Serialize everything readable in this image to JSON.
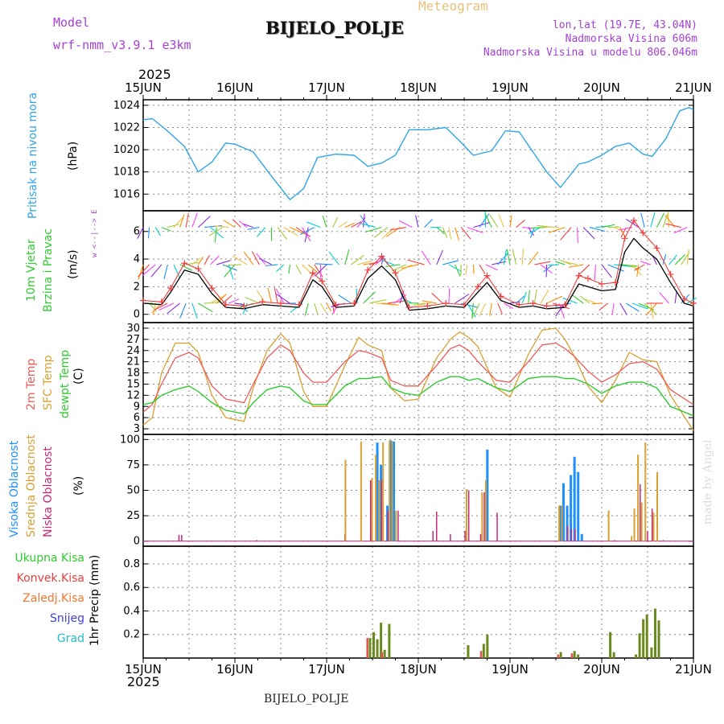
{
  "header": {
    "model_label": "Model",
    "model_name": "wrf-nmm_v3.9.1  e3km",
    "meteogram": "Meteogram",
    "station": "BIJELO_POLJE",
    "lonlat": "lon,lat (19.7E, 43.04N)",
    "elevation": "Nadmorska Visina 606m",
    "model_elevation": "Nadmorska Visina u modelu 806.046m",
    "footer_station": "BIJELO_POLJE",
    "watermark": "made by Angel"
  },
  "colors": {
    "pressure": "#2ea6e8",
    "wind_speed": "#000000",
    "gust": "#f03c3c",
    "t2m": "#f05a5a",
    "sfc": "#d9a030",
    "dew": "#2ecc2e",
    "cloud_high": "#1e90ff",
    "cloud_mid": "#d9a030",
    "cloud_low": "#c8287a",
    "precip_total": "#6a8a1e",
    "precip_conv": "#e05050",
    "grid": "#888888"
  },
  "labels": {
    "year_top": "2025",
    "year_bottom": "2025",
    "x_ticks": [
      "15JUN",
      "16JUN",
      "17JUN",
      "18JUN",
      "19JUN",
      "20JUN",
      "21JUN"
    ],
    "pressure_label": "Pritisak na nivou mora",
    "pressure_unit": "(hPa)",
    "wind_label_1": "10m Vjetar",
    "wind_label_2": "Brzina i Pravac",
    "wind_unit": "(m/s)",
    "compass": "w <--|--> E",
    "temp_label_1": "2m Temp",
    "temp_label_2": "SFC Temp",
    "temp_label_3": "dewpt Temp",
    "temp_unit": "(C)",
    "cloud_label_1": "Visoka Oblacnost",
    "cloud_label_2": "Srednja Oblacnost",
    "cloud_label_3": "Niska Oblacnost",
    "cloud_unit": "(%)",
    "precip_unit": "1hr Precip (mm)",
    "legend_total": "Ukupna Kisa",
    "legend_conv": "Konvek.Kisa",
    "legend_frz": "Zaledj.Kisa",
    "legend_snow": "Snijeg",
    "legend_hail": "Grad"
  },
  "chart_data": [
    {
      "type": "line",
      "name": "pressure",
      "ylabel": "Pritisak na nivou mora (hPa)",
      "ylim": [
        1014.5,
        1024.5
      ],
      "yticks": [
        1016,
        1018,
        1020,
        1022,
        1024
      ],
      "x_days": [
        0,
        0.1,
        0.25,
        0.45,
        0.6,
        0.75,
        0.9,
        1.0,
        1.2,
        1.4,
        1.6,
        1.75,
        1.9,
        2.1,
        2.3,
        2.45,
        2.6,
        2.75,
        2.9,
        3.1,
        3.3,
        3.45,
        3.6,
        3.8,
        3.95,
        4.1,
        4.25,
        4.4,
        4.55,
        4.75,
        4.85,
        5.0,
        5.15,
        5.3,
        5.45,
        5.55,
        5.7,
        5.85,
        5.95,
        6.0
      ],
      "values": [
        1022.7,
        1022.8,
        1021.8,
        1020.3,
        1018.0,
        1018.9,
        1020.6,
        1020.5,
        1019.8,
        1017.6,
        1015.5,
        1016.5,
        1019.3,
        1019.6,
        1019.5,
        1018.5,
        1018.8,
        1019.5,
        1021.8,
        1021.8,
        1022.0,
        1020.8,
        1019.5,
        1019.9,
        1021.7,
        1021.6,
        1019.8,
        1018.0,
        1016.6,
        1018.7,
        1018.9,
        1019.5,
        1020.3,
        1020.6,
        1019.6,
        1019.4,
        1021.0,
        1023.5,
        1023.8,
        1023.6
      ]
    },
    {
      "type": "line",
      "name": "wind",
      "ylabel": "10m Vjetar Brzina i Pravac (m/s)",
      "ylim": [
        -0.6,
        7.5
      ],
      "yticks": [
        0,
        2,
        4,
        6
      ],
      "x_days": [
        0,
        0.2,
        0.3,
        0.45,
        0.6,
        0.75,
        0.9,
        1.1,
        1.3,
        1.5,
        1.7,
        1.85,
        1.95,
        2.1,
        2.3,
        2.45,
        2.6,
        2.75,
        2.9,
        3.1,
        3.3,
        3.5,
        3.65,
        3.75,
        3.9,
        4.1,
        4.25,
        4.4,
        4.6,
        4.75,
        4.85,
        5.0,
        5.15,
        5.25,
        5.35,
        5.45,
        5.6,
        5.75,
        5.9,
        6.0
      ],
      "series": [
        {
          "name": "speed",
          "values": [
            0.8,
            0.7,
            1.6,
            3.2,
            2.9,
            1.5,
            0.5,
            0.4,
            0.7,
            0.6,
            0.5,
            2.5,
            2.0,
            0.5,
            0.6,
            2.6,
            3.5,
            2.5,
            0.3,
            0.4,
            0.6,
            0.5,
            1.6,
            2.3,
            1.0,
            0.5,
            0.6,
            0.4,
            0.5,
            2.2,
            2.0,
            1.7,
            1.8,
            4.5,
            5.5,
            4.8,
            4.0,
            2.3,
            0.8,
            0.6
          ]
        },
        {
          "name": "gust",
          "values": [
            1.0,
            0.9,
            1.9,
            3.7,
            3.3,
            1.9,
            0.7,
            0.6,
            0.9,
            0.8,
            0.7,
            3.0,
            2.4,
            0.7,
            0.8,
            3.2,
            4.2,
            3.0,
            0.5,
            0.6,
            0.8,
            0.7,
            2.0,
            2.8,
            1.3,
            0.7,
            0.8,
            0.6,
            0.7,
            2.8,
            2.6,
            2.2,
            2.3,
            5.5,
            6.8,
            5.9,
            4.8,
            2.9,
            1.1,
            0.8
          ]
        }
      ],
      "arrow_rows_mps": [
        0.8,
        3.6,
        6.3
      ]
    },
    {
      "type": "line",
      "name": "temperature",
      "ylabel": "Temp (C)",
      "ylim": [
        1.5,
        31.5
      ],
      "yticks": [
        3,
        6,
        9,
        12,
        15,
        18,
        21,
        24,
        27,
        30
      ],
      "x_days": [
        0,
        0.1,
        0.2,
        0.35,
        0.5,
        0.6,
        0.75,
        0.9,
        1.1,
        1.2,
        1.35,
        1.5,
        1.6,
        1.75,
        1.85,
        2.0,
        2.2,
        2.35,
        2.45,
        2.6,
        2.7,
        2.85,
        3.0,
        3.2,
        3.35,
        3.45,
        3.55,
        3.65,
        3.85,
        4.0,
        4.2,
        4.35,
        4.5,
        4.6,
        4.7,
        4.85,
        5.0,
        5.15,
        5.3,
        5.45,
        5.6,
        5.75,
        6.0
      ],
      "series": [
        {
          "name": "2m Temp",
          "values": [
            7.5,
            9.5,
            15.0,
            22.0,
            23.5,
            22.0,
            14.5,
            11.0,
            10.0,
            15.0,
            22.0,
            25.5,
            24.0,
            18.0,
            15.5,
            15.5,
            21.0,
            24.0,
            23.5,
            22.0,
            16.0,
            14.5,
            14.5,
            20.0,
            24.5,
            25.5,
            24.0,
            21.0,
            16.0,
            15.5,
            21.0,
            25.5,
            26.0,
            24.5,
            22.5,
            18.5,
            15.5,
            17.5,
            20.5,
            21.0,
            19.0,
            13.5,
            9.5
          ]
        },
        {
          "name": "SFC Temp",
          "values": [
            4.0,
            6.0,
            18.0,
            26.0,
            26.0,
            23.5,
            12.0,
            6.0,
            5.0,
            14.0,
            24.0,
            28.5,
            26.0,
            13.0,
            9.0,
            9.0,
            20.0,
            27.5,
            25.5,
            24.0,
            14.0,
            10.5,
            11.0,
            22.0,
            27.0,
            29.0,
            27.5,
            25.0,
            14.0,
            11.5,
            23.0,
            29.5,
            30.0,
            27.0,
            22.5,
            14.5,
            10.0,
            16.0,
            23.5,
            21.5,
            21.0,
            12.0,
            2.5
          ]
        },
        {
          "name": "dewpt Temp",
          "values": [
            9.5,
            10.0,
            12.0,
            13.5,
            14.5,
            13.0,
            10.0,
            8.0,
            7.0,
            10.0,
            13.5,
            14.5,
            14.0,
            10.5,
            9.5,
            9.5,
            14.5,
            16.5,
            16.5,
            17.0,
            14.0,
            12.5,
            12.0,
            15.5,
            17.0,
            17.0,
            16.0,
            16.5,
            14.0,
            13.0,
            16.5,
            17.0,
            17.0,
            16.5,
            16.5,
            15.0,
            12.5,
            14.5,
            15.5,
            15.5,
            14.0,
            9.0,
            6.5
          ]
        }
      ]
    },
    {
      "type": "bar",
      "name": "clouds",
      "ylabel": "Oblacnost (%)",
      "ylim": [
        -5,
        105
      ],
      "yticks": [
        0,
        25,
        50,
        75,
        100
      ],
      "bars": [
        {
          "d": 0.37,
          "h": 0,
          "m": 0,
          "l": 6
        },
        {
          "d": 0.4,
          "h": 0,
          "m": 0,
          "l": 6
        },
        {
          "d": 1.22,
          "h": 0,
          "m": 0,
          "l": 1
        },
        {
          "d": 2.18,
          "h": 0,
          "m": 0,
          "l": 7
        },
        {
          "d": 2.21,
          "h": 0,
          "m": 80,
          "l": 0
        },
        {
          "d": 2.38,
          "h": 0,
          "m": 98,
          "l": 0
        },
        {
          "d": 2.46,
          "h": 0,
          "m": 0,
          "l": 60
        },
        {
          "d": 2.5,
          "h": 0,
          "m": 62,
          "l": 0
        },
        {
          "d": 2.54,
          "h": 97,
          "m": 85,
          "l": 0
        },
        {
          "d": 2.58,
          "h": 75,
          "m": 60,
          "l": 60
        },
        {
          "d": 2.62,
          "h": 0,
          "m": 97,
          "l": 0
        },
        {
          "d": 2.65,
          "h": 35,
          "m": 0,
          "l": 30
        },
        {
          "d": 2.69,
          "h": 99,
          "m": 99,
          "l": 0
        },
        {
          "d": 2.72,
          "h": 98,
          "m": 98,
          "l": 0
        },
        {
          "d": 2.76,
          "h": 0,
          "m": 30,
          "l": 30
        },
        {
          "d": 3.14,
          "h": 0,
          "m": 0,
          "l": 10
        },
        {
          "d": 3.18,
          "h": 0,
          "m": 0,
          "l": 29
        },
        {
          "d": 3.33,
          "h": 0,
          "m": 0,
          "l": 7
        },
        {
          "d": 3.49,
          "h": 0,
          "m": 0,
          "l": 10
        },
        {
          "d": 3.53,
          "h": 0,
          "m": 51,
          "l": 50
        },
        {
          "d": 3.66,
          "h": 0,
          "m": 0,
          "l": 7
        },
        {
          "d": 3.7,
          "h": 0,
          "m": 48,
          "l": 48
        },
        {
          "d": 3.74,
          "h": 90,
          "m": 60,
          "l": 0
        },
        {
          "d": 3.84,
          "h": 0,
          "m": 0,
          "l": 28
        },
        {
          "d": 4.54,
          "h": 35,
          "m": 35,
          "l": 0
        },
        {
          "d": 4.57,
          "h": 57,
          "m": 35,
          "l": 0
        },
        {
          "d": 4.61,
          "h": 35,
          "m": 0,
          "l": 15
        },
        {
          "d": 4.65,
          "h": 65,
          "m": 0,
          "l": 12
        },
        {
          "d": 4.69,
          "h": 83,
          "m": 0,
          "l": 12
        },
        {
          "d": 4.73,
          "h": 68,
          "m": 0,
          "l": 0
        },
        {
          "d": 4.77,
          "h": 7,
          "m": 0,
          "l": 0
        },
        {
          "d": 5.08,
          "h": 0,
          "m": 30,
          "l": 0
        },
        {
          "d": 5.12,
          "h": 0,
          "m": 0,
          "l": 1
        },
        {
          "d": 5.33,
          "h": 0,
          "m": 5,
          "l": 0
        },
        {
          "d": 5.36,
          "h": 0,
          "m": 32,
          "l": 0
        },
        {
          "d": 5.4,
          "h": 0,
          "m": 85,
          "l": 56
        },
        {
          "d": 5.44,
          "h": 0,
          "m": 38,
          "l": 0
        },
        {
          "d": 5.48,
          "h": 0,
          "m": 97,
          "l": 10
        },
        {
          "d": 5.53,
          "h": 0,
          "m": 0,
          "l": 32
        },
        {
          "d": 5.57,
          "h": 0,
          "m": 28,
          "l": 0
        },
        {
          "d": 5.61,
          "h": 0,
          "m": 68,
          "l": 0
        },
        {
          "d": 5.65,
          "h": 0,
          "m": 0,
          "l": 1
        }
      ]
    },
    {
      "type": "bar",
      "name": "precipitation",
      "ylabel": "1hr Precip (mm)",
      "ylim": [
        0,
        0.95
      ],
      "yticks": [
        0.2,
        0.4,
        0.6,
        0.8
      ],
      "bars": [
        {
          "d": 2.46,
          "total": 0.17,
          "conv": 0.17
        },
        {
          "d": 2.5,
          "total": 0.22,
          "conv": 0
        },
        {
          "d": 2.54,
          "total": 0.16,
          "conv": 0
        },
        {
          "d": 2.58,
          "total": 0.3,
          "conv": 0
        },
        {
          "d": 2.62,
          "total": 0.07,
          "conv": 0.05
        },
        {
          "d": 2.67,
          "total": 0.29,
          "conv": 0
        },
        {
          "d": 3.53,
          "total": 0.11,
          "conv": 0
        },
        {
          "d": 3.7,
          "total": 0.12,
          "conv": 0.06
        },
        {
          "d": 3.74,
          "total": 0.2,
          "conv": 0
        },
        {
          "d": 4.54,
          "total": 0.05,
          "conv": 0.03
        },
        {
          "d": 4.69,
          "total": 0.06,
          "conv": 0.04
        },
        {
          "d": 4.73,
          "total": 0.03,
          "conv": 0
        },
        {
          "d": 5.08,
          "total": 0.22,
          "conv": 0
        },
        {
          "d": 5.12,
          "total": 0.05,
          "conv": 0
        },
        {
          "d": 5.36,
          "total": 0.03,
          "conv": 0
        },
        {
          "d": 5.4,
          "total": 0.21,
          "conv": 0
        },
        {
          "d": 5.44,
          "total": 0.33,
          "conv": 0
        },
        {
          "d": 5.48,
          "total": 0.37,
          "conv": 0
        },
        {
          "d": 5.53,
          "total": 0.09,
          "conv": 0
        },
        {
          "d": 5.57,
          "total": 0.42,
          "conv": 0
        },
        {
          "d": 5.61,
          "total": 0.32,
          "conv": 0
        }
      ]
    }
  ]
}
